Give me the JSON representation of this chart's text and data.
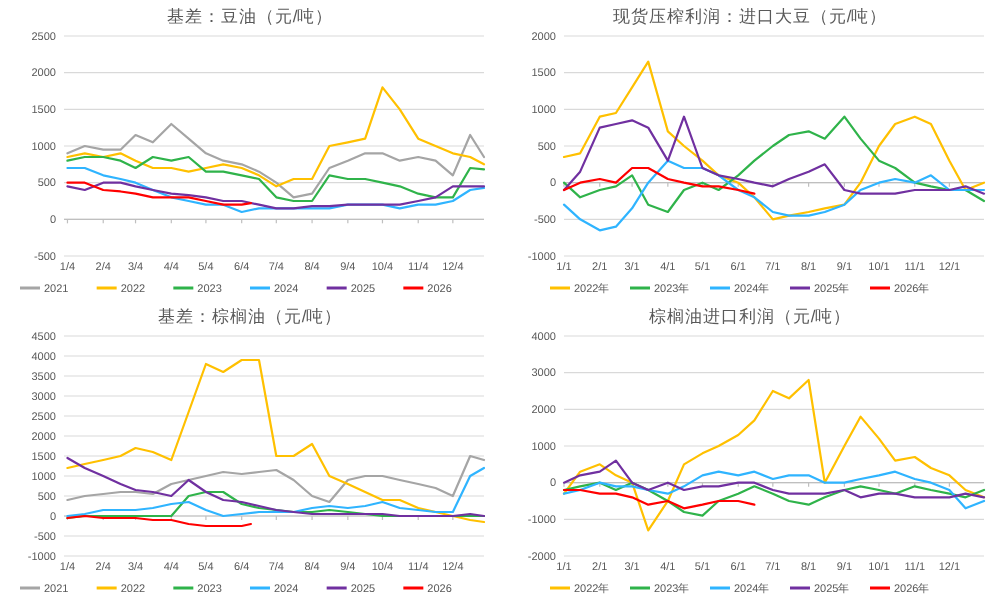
{
  "chart_data": [
    {
      "type": "line",
      "title": "基差：豆油（元/吨）",
      "x": [
        "--01-04",
        "--01-19",
        "--02-04",
        "--02-19",
        "--03-04",
        "--03-19",
        "--04-04",
        "--04-19",
        "--05-04",
        "--05-19",
        "--06-04",
        "--06-19",
        "--07-04",
        "--07-19",
        "--08-04",
        "--08-19",
        "--09-04",
        "--09-19",
        "--10-04",
        "--10-19",
        "--11-04",
        "--11-19",
        "--12-04",
        "--12-19",
        "--12-31"
      ],
      "xlim": [
        "--01-01",
        "--12-31"
      ],
      "xticks": [
        {
          "value": "--01-04",
          "label": "1/4"
        },
        {
          "value": "--02-04",
          "label": "2/4"
        },
        {
          "value": "--03-04",
          "label": "3/4"
        },
        {
          "value": "--04-04",
          "label": "4/4"
        },
        {
          "value": "--05-04",
          "label": "5/4"
        },
        {
          "value": "--06-04",
          "label": "6/4"
        },
        {
          "value": "--07-04",
          "label": "7/4"
        },
        {
          "value": "--08-04",
          "label": "8/4"
        },
        {
          "value": "--09-04",
          "label": "9/4"
        },
        {
          "value": "--10-04",
          "label": "10/4"
        },
        {
          "value": "--11-04",
          "label": "11/4"
        },
        {
          "value": "--12-04",
          "label": "12/4"
        }
      ],
      "ylim": [
        -500,
        2500
      ],
      "yticks": [
        -500,
        0,
        500,
        1000,
        1500,
        2000,
        2500
      ],
      "grid": "y",
      "legend": "bottom",
      "series": [
        {
          "name": "2021",
          "color": "#a5a5a5",
          "values": [
            900,
            1000,
            950,
            950,
            1150,
            1050,
            1300,
            1100,
            900,
            800,
            750,
            650,
            500,
            300,
            350,
            700,
            800,
            900,
            900,
            800,
            850,
            800,
            600,
            1150,
            850
          ]
        },
        {
          "name": "2022",
          "color": "#ffc000",
          "values": [
            850,
            900,
            850,
            900,
            800,
            700,
            700,
            650,
            700,
            750,
            700,
            600,
            450,
            550,
            550,
            1000,
            1050,
            1100,
            1800,
            1500,
            1100,
            1000,
            900,
            850,
            750
          ]
        },
        {
          "name": "2023",
          "color": "#2fb34a",
          "values": [
            800,
            850,
            850,
            800,
            700,
            850,
            800,
            850,
            650,
            650,
            600,
            550,
            300,
            250,
            250,
            600,
            550,
            550,
            500,
            450,
            350,
            300,
            300,
            700,
            680
          ]
        },
        {
          "name": "2024",
          "color": "#2fb4ff",
          "values": [
            700,
            700,
            600,
            550,
            500,
            400,
            300,
            250,
            200,
            200,
            100,
            150,
            150,
            150,
            150,
            150,
            200,
            200,
            200,
            150,
            200,
            200,
            250,
            400,
            430
          ]
        },
        {
          "name": "2025",
          "color": "#7030a0",
          "values": [
            450,
            400,
            500,
            500,
            450,
            400,
            350,
            330,
            300,
            250,
            250,
            200,
            150,
            150,
            180,
            180,
            200,
            200,
            200,
            200,
            250,
            300,
            450,
            450,
            450
          ]
        },
        {
          "name": "2026",
          "color": "#ff0000",
          "x": [
            "--01-04",
            "--01-19",
            "--02-04",
            "--02-19",
            "--03-04",
            "--03-19",
            "--04-04",
            "--04-19",
            "--05-04",
            "--05-19",
            "--06-04",
            "--06-12"
          ],
          "values": [
            500,
            500,
            400,
            380,
            350,
            300,
            300,
            300,
            250,
            200,
            200,
            220
          ]
        }
      ]
    },
    {
      "type": "line",
      "title": "现货压榨利润：进口大豆（元/吨）",
      "x": [
        "--01-01",
        "--01-15",
        "--02-01",
        "--02-15",
        "--03-01",
        "--03-15",
        "--04-01",
        "--04-15",
        "--05-01",
        "--05-15",
        "--06-01",
        "--06-15",
        "--07-01",
        "--07-15",
        "--08-01",
        "--08-15",
        "--09-01",
        "--09-15",
        "--10-01",
        "--10-15",
        "--11-01",
        "--11-15",
        "--12-01",
        "--12-15",
        "--12-31"
      ],
      "xlim": [
        "--01-01",
        "--12-31"
      ],
      "xticks": [
        {
          "value": "--01-01",
          "label": "1/1"
        },
        {
          "value": "--02-01",
          "label": "2/1"
        },
        {
          "value": "--03-01",
          "label": "3/1"
        },
        {
          "value": "--04-01",
          "label": "4/1"
        },
        {
          "value": "--05-01",
          "label": "5/1"
        },
        {
          "value": "--06-01",
          "label": "6/1"
        },
        {
          "value": "--07-01",
          "label": "7/1"
        },
        {
          "value": "--08-01",
          "label": "8/1"
        },
        {
          "value": "--09-01",
          "label": "9/1"
        },
        {
          "value": "--10-01",
          "label": "10/1"
        },
        {
          "value": "--11-01",
          "label": "11/1"
        },
        {
          "value": "--12-01",
          "label": "12/1"
        }
      ],
      "ylim": [
        -1000,
        2000
      ],
      "yticks": [
        -1000,
        -500,
        0,
        500,
        1000,
        1500,
        2000
      ],
      "grid": "y",
      "legend": "bottom",
      "series": [
        {
          "name": "2022年",
          "color": "#ffc000",
          "values": [
            350,
            400,
            900,
            950,
            1300,
            1650,
            700,
            500,
            300,
            100,
            0,
            -200,
            -500,
            -450,
            -400,
            -350,
            -300,
            0,
            500,
            800,
            900,
            800,
            300,
            -100,
            0
          ]
        },
        {
          "name": "2023年",
          "color": "#2fb34a",
          "values": [
            0,
            -200,
            -100,
            -50,
            100,
            -300,
            -400,
            -100,
            0,
            -100,
            100,
            300,
            500,
            650,
            700,
            600,
            900,
            600,
            300,
            200,
            0,
            -50,
            -100,
            -100,
            -250
          ]
        },
        {
          "name": "2024年",
          "color": "#2fb4ff",
          "values": [
            -300,
            -500,
            -650,
            -600,
            -350,
            0,
            300,
            200,
            200,
            100,
            -100,
            -200,
            -400,
            -450,
            -450,
            -400,
            -300,
            -100,
            0,
            50,
            0,
            100,
            -100,
            -100,
            -100
          ]
        },
        {
          "name": "2025年",
          "color": "#7030a0",
          "values": [
            -100,
            150,
            750,
            800,
            850,
            750,
            300,
            900,
            200,
            100,
            50,
            0,
            -50,
            50,
            150,
            250,
            -100,
            -150,
            -150,
            -150,
            -100,
            -100,
            -100,
            -50,
            -150
          ]
        },
        {
          "name": "2026年",
          "color": "#ff0000",
          "x": [
            "--01-01",
            "--01-15",
            "--02-01",
            "--02-15",
            "--03-01",
            "--03-15",
            "--04-01",
            "--04-15",
            "--05-01",
            "--05-15",
            "--06-01",
            "--06-15"
          ],
          "values": [
            -100,
            0,
            50,
            0,
            200,
            200,
            50,
            0,
            -50,
            -50,
            -100,
            -150
          ]
        }
      ]
    },
    {
      "type": "line",
      "title": "基差：棕榈油（元/吨）",
      "x": [
        "--01-04",
        "--01-19",
        "--02-04",
        "--02-19",
        "--03-04",
        "--03-19",
        "--04-04",
        "--04-19",
        "--05-04",
        "--05-19",
        "--06-04",
        "--06-19",
        "--07-04",
        "--07-19",
        "--08-04",
        "--08-19",
        "--09-04",
        "--09-19",
        "--10-04",
        "--10-19",
        "--11-04",
        "--11-19",
        "--12-04",
        "--12-19",
        "--12-31"
      ],
      "xlim": [
        "--01-01",
        "--12-31"
      ],
      "xticks": [
        {
          "value": "--01-04",
          "label": "1/4"
        },
        {
          "value": "--02-04",
          "label": "2/4"
        },
        {
          "value": "--03-04",
          "label": "3/4"
        },
        {
          "value": "--04-04",
          "label": "4/4"
        },
        {
          "value": "--05-04",
          "label": "5/4"
        },
        {
          "value": "--06-04",
          "label": "6/4"
        },
        {
          "value": "--07-04",
          "label": "7/4"
        },
        {
          "value": "--08-04",
          "label": "8/4"
        },
        {
          "value": "--09-04",
          "label": "9/4"
        },
        {
          "value": "--10-04",
          "label": "10/4"
        },
        {
          "value": "--11-04",
          "label": "11/4"
        },
        {
          "value": "--12-04",
          "label": "12/4"
        }
      ],
      "ylim": [
        -1000,
        4500
      ],
      "yticks": [
        -1000,
        -500,
        0,
        500,
        1000,
        1500,
        2000,
        2500,
        3000,
        3500,
        4000,
        4500
      ],
      "grid": "y",
      "legend": "bottom",
      "series": [
        {
          "name": "2021",
          "color": "#a5a5a5",
          "values": [
            400,
            500,
            550,
            600,
            600,
            550,
            800,
            900,
            1000,
            1100,
            1050,
            1100,
            1150,
            900,
            500,
            350,
            900,
            1000,
            1000,
            900,
            800,
            700,
            500,
            1500,
            1400
          ]
        },
        {
          "name": "2022",
          "color": "#ffc000",
          "values": [
            1200,
            1300,
            1400,
            1500,
            1700,
            1600,
            1400,
            2600,
            3800,
            3600,
            3900,
            3900,
            1500,
            1500,
            1800,
            1000,
            800,
            600,
            400,
            400,
            200,
            100,
            0,
            -100,
            -150
          ]
        },
        {
          "name": "2023",
          "color": "#2fb34a",
          "values": [
            -50,
            0,
            0,
            0,
            0,
            0,
            0,
            500,
            600,
            600,
            300,
            200,
            150,
            100,
            100,
            150,
            100,
            50,
            0,
            0,
            0,
            0,
            0,
            0,
            0
          ]
        },
        {
          "name": "2024",
          "color": "#2fb4ff",
          "values": [
            0,
            50,
            150,
            150,
            150,
            200,
            300,
            350,
            150,
            0,
            50,
            100,
            100,
            100,
            200,
            250,
            200,
            250,
            350,
            200,
            150,
            100,
            100,
            1000,
            1200
          ]
        },
        {
          "name": "2025",
          "color": "#7030a0",
          "values": [
            1450,
            1200,
            1000,
            800,
            650,
            600,
            500,
            900,
            600,
            400,
            350,
            250,
            150,
            100,
            50,
            50,
            50,
            50,
            50,
            0,
            0,
            0,
            0,
            50,
            0
          ]
        },
        {
          "name": "2026",
          "color": "#ff0000",
          "x": [
            "--01-04",
            "--01-19",
            "--02-04",
            "--02-19",
            "--03-04",
            "--03-19",
            "--04-04",
            "--04-19",
            "--05-04",
            "--05-19",
            "--06-04",
            "--06-12"
          ],
          "values": [
            -50,
            0,
            -50,
            -50,
            -50,
            -100,
            -100,
            -200,
            -250,
            -250,
            -250,
            -200
          ]
        }
      ]
    },
    {
      "type": "line",
      "title": "棕榈油进口利润（元/吨）",
      "x": [
        "--01-01",
        "--01-15",
        "--02-01",
        "--02-15",
        "--03-01",
        "--03-15",
        "--04-01",
        "--04-15",
        "--05-01",
        "--05-15",
        "--06-01",
        "--06-15",
        "--07-01",
        "--07-15",
        "--08-01",
        "--08-15",
        "--09-01",
        "--09-15",
        "--10-01",
        "--10-15",
        "--11-01",
        "--11-15",
        "--12-01",
        "--12-15",
        "--12-31"
      ],
      "xlim": [
        "--01-01",
        "--12-31"
      ],
      "xticks": [
        {
          "value": "--01-01",
          "label": "1/1"
        },
        {
          "value": "--02-01",
          "label": "2/1"
        },
        {
          "value": "--03-01",
          "label": "3/1"
        },
        {
          "value": "--04-01",
          "label": "4/1"
        },
        {
          "value": "--05-01",
          "label": "5/1"
        },
        {
          "value": "--06-01",
          "label": "6/1"
        },
        {
          "value": "--07-01",
          "label": "7/1"
        },
        {
          "value": "--08-01",
          "label": "8/1"
        },
        {
          "value": "--09-01",
          "label": "9/1"
        },
        {
          "value": "--10-01",
          "label": "10/1"
        },
        {
          "value": "--11-01",
          "label": "11/1"
        },
        {
          "value": "--12-01",
          "label": "12/1"
        }
      ],
      "ylim": [
        -2000,
        4000
      ],
      "yticks": [
        -2000,
        -1000,
        0,
        1000,
        2000,
        3000,
        4000
      ],
      "grid": "y",
      "legend": "bottom",
      "series": [
        {
          "name": "2022年",
          "color": "#ffc000",
          "values": [
            -300,
            300,
            500,
            200,
            0,
            -1300,
            -500,
            500,
            800,
            1000,
            1300,
            1700,
            2500,
            2300,
            2800,
            0,
            1000,
            1800,
            1200,
            600,
            700,
            400,
            200,
            -200,
            -400
          ]
        },
        {
          "name": "2023年",
          "color": "#2fb34a",
          "values": [
            -200,
            -100,
            0,
            -200,
            0,
            -200,
            -500,
            -800,
            -900,
            -500,
            -300,
            -100,
            -300,
            -500,
            -600,
            -400,
            -200,
            -100,
            -200,
            -300,
            -100,
            -200,
            -300,
            -400,
            -200
          ]
        },
        {
          "name": "2024年",
          "color": "#2fb4ff",
          "values": [
            -300,
            -200,
            0,
            -100,
            -100,
            -200,
            -300,
            -100,
            200,
            300,
            200,
            300,
            100,
            200,
            200,
            0,
            0,
            100,
            200,
            300,
            100,
            0,
            -200,
            -700,
            -500
          ]
        },
        {
          "name": "2025年",
          "color": "#7030a0",
          "values": [
            0,
            200,
            300,
            600,
            0,
            -200,
            0,
            -200,
            -100,
            -100,
            0,
            0,
            -200,
            -300,
            -300,
            -300,
            -200,
            -400,
            -300,
            -300,
            -400,
            -400,
            -400,
            -300,
            -400
          ]
        },
        {
          "name": "2026年",
          "color": "#ff0000",
          "x": [
            "--01-01",
            "--01-15",
            "--02-01",
            "--02-15",
            "--03-01",
            "--03-15",
            "--04-01",
            "--04-15",
            "--05-01",
            "--05-15",
            "--06-01",
            "--06-15"
          ],
          "values": [
            -200,
            -200,
            -300,
            -300,
            -400,
            -600,
            -500,
            -700,
            -600,
            -500,
            -500,
            -600
          ]
        }
      ]
    }
  ]
}
